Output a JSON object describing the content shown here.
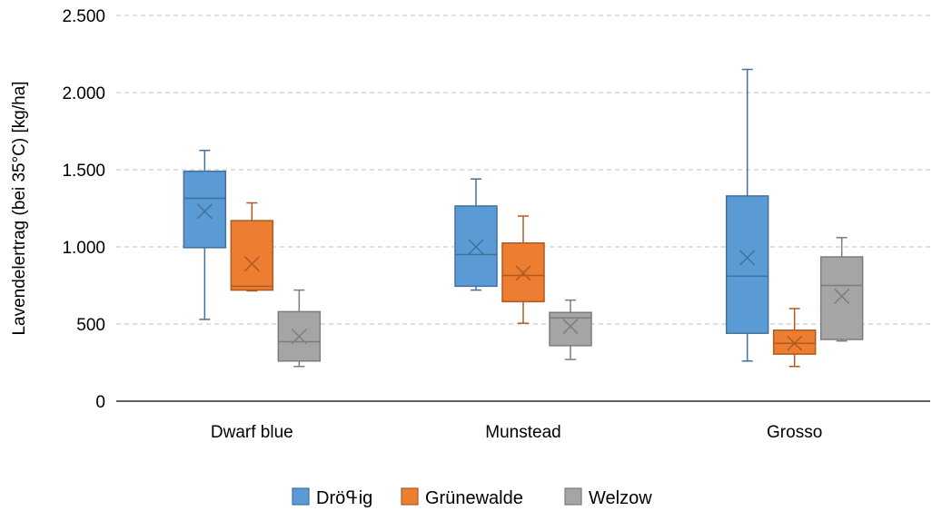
{
  "chart_data": {
    "type": "boxplot",
    "ylabel": "Lavendelertrag (bei 35°C) [kg/ha]",
    "ylim": [
      0,
      2500
    ],
    "yticks": [
      0,
      500,
      1000,
      1500,
      2000,
      2500
    ],
    "ytick_labels": [
      "0",
      "500",
      "1.000",
      "1.500",
      "2.000",
      "2.500"
    ],
    "grid": "horizontal-dashed",
    "legend_position": "bottom",
    "categories": [
      "Dwarf blue",
      "Munstead",
      "Grosso"
    ],
    "series": [
      {
        "name": "Dröߟig",
        "color": "#5b9bd5",
        "border": "#41719c",
        "boxes": [
          {
            "min": 530,
            "q1": 995,
            "median": 1315,
            "q3": 1490,
            "max": 1625,
            "mean": 1230
          },
          {
            "min": 720,
            "q1": 745,
            "median": 950,
            "q3": 1265,
            "max": 1440,
            "mean": 1000
          },
          {
            "min": 260,
            "q1": 440,
            "median": 810,
            "q3": 1330,
            "max": 2150,
            "mean": 930
          }
        ]
      },
      {
        "name": "Grünewalde",
        "color": "#ed7d31",
        "border": "#ae5a21",
        "boxes": [
          {
            "min": 715,
            "q1": 720,
            "median": 745,
            "q3": 1170,
            "max": 1285,
            "mean": 890
          },
          {
            "min": 505,
            "q1": 645,
            "median": 815,
            "q3": 1025,
            "max": 1200,
            "mean": 830
          },
          {
            "min": 225,
            "q1": 305,
            "median": 375,
            "q3": 460,
            "max": 600,
            "mean": 375
          }
        ]
      },
      {
        "name": "Welzow",
        "color": "#a5a5a5",
        "border": "#7c7c7c",
        "boxes": [
          {
            "min": 225,
            "q1": 260,
            "median": 385,
            "q3": 580,
            "max": 720,
            "mean": 420
          },
          {
            "min": 270,
            "q1": 360,
            "median": 540,
            "q3": 575,
            "max": 655,
            "mean": 485
          },
          {
            "min": 390,
            "q1": 400,
            "median": 750,
            "q3": 935,
            "max": 1060,
            "mean": 680
          }
        ]
      }
    ]
  }
}
